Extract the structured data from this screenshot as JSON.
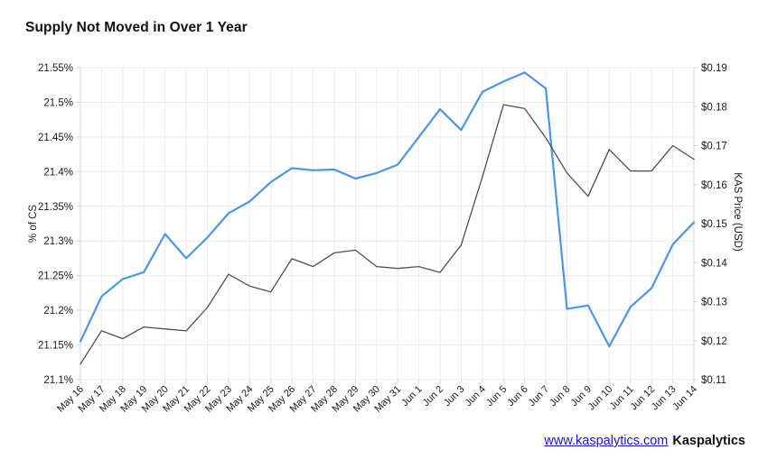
{
  "title": "Supply Not Moved in Over 1 Year",
  "footer": {
    "link_text": "www.kaspalytics.com",
    "brand": "Kaspalytics"
  },
  "colors": {
    "supply_line": "#4d96e3",
    "price_line": "#4f4f4f",
    "grid": "#ececec",
    "axis_edge": "#d6d6d6",
    "tick_text": "#1a1a1a"
  },
  "chart_data": {
    "type": "line",
    "title": "Supply Not Moved in Over 1 Year",
    "grid": true,
    "legend": "none",
    "x": [
      "May 16",
      "May 17",
      "May 18",
      "May 19",
      "May 20",
      "May 21",
      "May 22",
      "May 23",
      "May 24",
      "May 25",
      "May 26",
      "May 27",
      "May 28",
      "May 29",
      "May 30",
      "May 31",
      "Jun 1",
      "Jun 2",
      "Jun 3",
      "Jun 4",
      "Jun 5",
      "Jun 6",
      "Jun 7",
      "Jun 8",
      "Jun 9",
      "Jun 10",
      "Jun 11",
      "Jun 12",
      "Jun 13",
      "Jun 14"
    ],
    "left_axis": {
      "label": "% of CS",
      "min": 21.1,
      "max": 21.55,
      "ticks": [
        {
          "v": 21.55,
          "label": "21.55%"
        },
        {
          "v": 21.5,
          "label": "21.5%"
        },
        {
          "v": 21.45,
          "label": "21.45%"
        },
        {
          "v": 21.4,
          "label": "21.4%"
        },
        {
          "v": 21.35,
          "label": "21.35%"
        },
        {
          "v": 21.3,
          "label": "21.3%"
        },
        {
          "v": 21.25,
          "label": "21.25%"
        },
        {
          "v": 21.2,
          "label": "21.2%"
        },
        {
          "v": 21.15,
          "label": "21.15%"
        },
        {
          "v": 21.1,
          "label": "21.1%"
        }
      ]
    },
    "right_axis": {
      "label": "KAS Price (USD)",
      "min": 0.11,
      "max": 0.19,
      "ticks": [
        {
          "v": 0.19,
          "label": "$0.19"
        },
        {
          "v": 0.18,
          "label": "$0.18"
        },
        {
          "v": 0.17,
          "label": "$0.17"
        },
        {
          "v": 0.16,
          "label": "$0.16"
        },
        {
          "v": 0.15,
          "label": "$0.15"
        },
        {
          "v": 0.14,
          "label": "$0.14"
        },
        {
          "v": 0.13,
          "label": "$0.13"
        },
        {
          "v": 0.12,
          "label": "$0.12"
        },
        {
          "v": 0.11,
          "label": "$0.11"
        }
      ]
    },
    "series": [
      {
        "name": "% of CS",
        "axis": "left",
        "color": "#4d96e3",
        "width": 2.2,
        "values": [
          21.155,
          21.22,
          21.245,
          21.255,
          21.31,
          21.275,
          21.305,
          21.34,
          21.357,
          21.385,
          21.405,
          21.402,
          21.403,
          21.39,
          21.398,
          21.41,
          21.45,
          21.49,
          21.46,
          21.515,
          21.53,
          21.543,
          21.52,
          21.202,
          21.207,
          21.148,
          21.205,
          21.232,
          21.295,
          21.327
        ]
      },
      {
        "name": "KAS Price (USD)",
        "axis": "right",
        "color": "#4f4f4f",
        "width": 1.3,
        "values": [
          0.114,
          0.1225,
          0.1205,
          0.1235,
          0.123,
          0.1225,
          0.1285,
          0.137,
          0.134,
          0.1325,
          0.141,
          0.139,
          0.1425,
          0.1432,
          0.139,
          0.1385,
          0.139,
          0.1375,
          0.1445,
          0.162,
          0.1805,
          0.1795,
          0.172,
          0.163,
          0.157,
          0.169,
          0.1635,
          0.1635,
          0.17,
          0.1665
        ]
      }
    ]
  }
}
